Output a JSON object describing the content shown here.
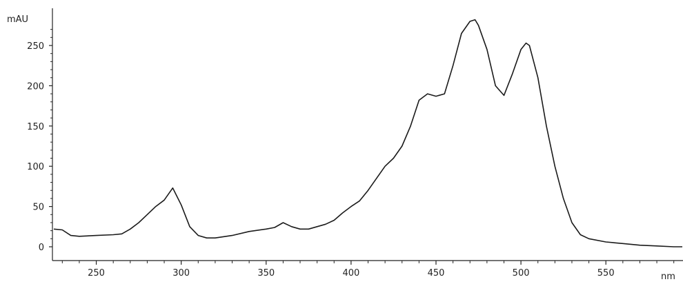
{
  "chart_data": {
    "type": "line",
    "title": "",
    "ylabel": "mAU",
    "xlabel": "nm",
    "xlim": [
      225,
      595
    ],
    "ylim": [
      -10,
      280
    ],
    "grid": false,
    "colors": {
      "line": "#1a1a1a",
      "axis": "#222222"
    },
    "x_ticks": [
      250,
      300,
      350,
      400,
      450,
      500,
      550
    ],
    "y_ticks": [
      0,
      50,
      100,
      150,
      200,
      250
    ],
    "series": [
      {
        "x": [
          225,
          230,
          235,
          240,
          250,
          260,
          265,
          270,
          275,
          280,
          285,
          290,
          295,
          300,
          305,
          310,
          315,
          320,
          330,
          340,
          350,
          355,
          360,
          365,
          370,
          375,
          380,
          385,
          390,
          395,
          400,
          405,
          410,
          415,
          420,
          425,
          430,
          435,
          440,
          445,
          450,
          455,
          460,
          465,
          470,
          473,
          475,
          480,
          485,
          490,
          495,
          500,
          503,
          505,
          510,
          515,
          520,
          525,
          530,
          535,
          540,
          550,
          560,
          570,
          580,
          590,
          595
        ],
        "y": [
          22,
          21,
          14,
          13,
          14,
          15,
          16,
          22,
          30,
          40,
          50,
          58,
          73,
          52,
          25,
          14,
          11,
          11,
          14,
          19,
          22,
          24,
          30,
          25,
          22,
          22,
          25,
          28,
          33,
          42,
          50,
          57,
          70,
          85,
          100,
          110,
          125,
          150,
          182,
          190,
          187,
          190,
          225,
          265,
          280,
          282,
          275,
          245,
          200,
          188,
          215,
          245,
          253,
          250,
          210,
          150,
          100,
          60,
          30,
          15,
          10,
          6,
          4,
          2,
          1,
          0,
          0
        ]
      }
    ]
  }
}
